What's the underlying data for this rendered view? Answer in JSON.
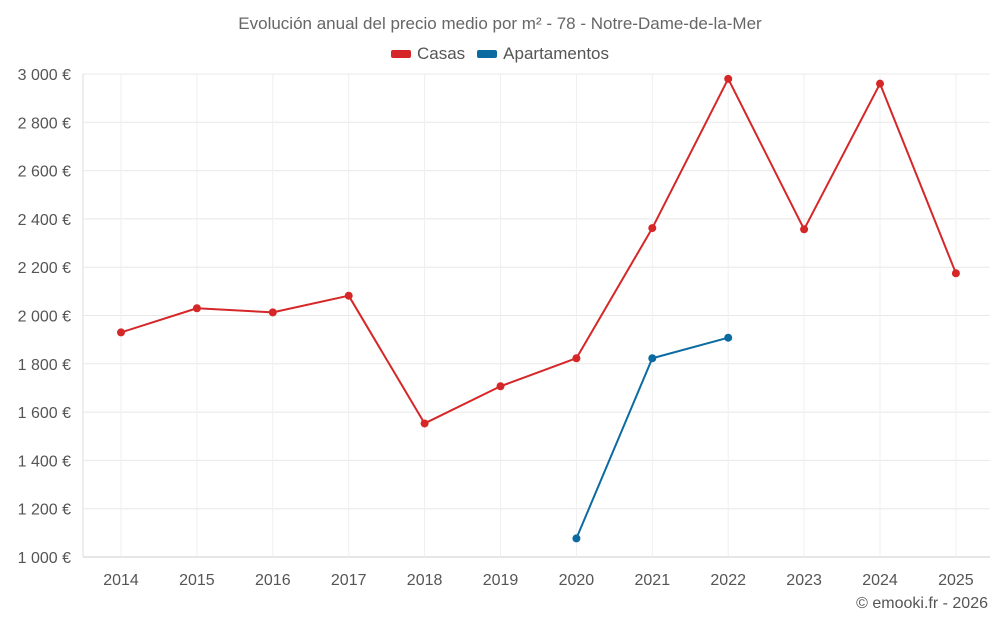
{
  "chart_data": {
    "type": "line",
    "title": "Evolución anual del precio medio por m² - 78 - Notre-Dame-de-la-Mer",
    "xlabel": "",
    "ylabel": "",
    "categories": [
      "2014",
      "2015",
      "2016",
      "2017",
      "2018",
      "2019",
      "2020",
      "2021",
      "2022",
      "2023",
      "2024",
      "2025"
    ],
    "ylim": [
      1000,
      3000
    ],
    "yticks": [
      1000,
      1200,
      1400,
      1600,
      1800,
      2000,
      2200,
      2400,
      2600,
      2800,
      3000
    ],
    "ytick_labels": [
      "1 000 €",
      "1 200 €",
      "1 400 €",
      "1 600 €",
      "1 800 €",
      "2 000 €",
      "2 200 €",
      "2 400 €",
      "2 600 €",
      "2 800 €",
      "3 000 €"
    ],
    "grid": true,
    "legend_position": "top-center",
    "series": [
      {
        "name": "Casas",
        "color": "#d62728",
        "values": [
          1930,
          2030,
          2013,
          2082,
          1553,
          1707,
          1823,
          2362,
          2980,
          2357,
          2960,
          2175
        ]
      },
      {
        "name": "Apartamentos",
        "color": "#0b6ba1",
        "values": [
          null,
          null,
          null,
          null,
          null,
          null,
          1077,
          1823,
          1908,
          null,
          null,
          null
        ]
      }
    ]
  },
  "credit": "© emooki.fr - 2026"
}
